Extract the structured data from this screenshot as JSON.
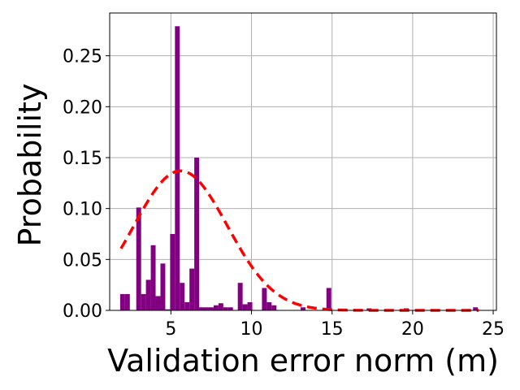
{
  "chart_data": {
    "type": "bar",
    "subtype": "histogram",
    "title": "",
    "xlabel": "Validation error norm (m)",
    "ylabel": "Probability",
    "xlim": [
      1.2,
      25.2
    ],
    "ylim": [
      0,
      0.292
    ],
    "xticks": [
      5,
      10,
      15,
      20,
      25
    ],
    "yticks": [
      0.0,
      0.05,
      0.1,
      0.15,
      0.2,
      0.25
    ],
    "ytick_labels": [
      "0.00",
      "0.05",
      "0.10",
      "0.15",
      "0.20",
      "0.25"
    ],
    "grid": true,
    "bar_color": "#800080",
    "fit_color": "#ff0000",
    "bin_width": 0.3,
    "bins": [
      {
        "x": 2.0,
        "y": 0.016
      },
      {
        "x": 2.3,
        "y": 0.016
      },
      {
        "x": 3.0,
        "y": 0.101
      },
      {
        "x": 3.3,
        "y": 0.016
      },
      {
        "x": 3.6,
        "y": 0.03
      },
      {
        "x": 3.9,
        "y": 0.064
      },
      {
        "x": 4.2,
        "y": 0.014
      },
      {
        "x": 4.5,
        "y": 0.046
      },
      {
        "x": 4.8,
        "y": 0.001
      },
      {
        "x": 5.1,
        "y": 0.075
      },
      {
        "x": 5.4,
        "y": 0.279
      },
      {
        "x": 5.7,
        "y": 0.027
      },
      {
        "x": 6.0,
        "y": 0.008
      },
      {
        "x": 6.3,
        "y": 0.041
      },
      {
        "x": 6.6,
        "y": 0.15
      },
      {
        "x": 6.9,
        "y": 0.003
      },
      {
        "x": 7.2,
        "y": 0.003
      },
      {
        "x": 7.5,
        "y": 0.003
      },
      {
        "x": 7.8,
        "y": 0.005
      },
      {
        "x": 8.1,
        "y": 0.007
      },
      {
        "x": 8.4,
        "y": 0.003
      },
      {
        "x": 8.7,
        "y": 0.003
      },
      {
        "x": 9.3,
        "y": 0.027
      },
      {
        "x": 9.6,
        "y": 0.006
      },
      {
        "x": 9.9,
        "y": 0.008
      },
      {
        "x": 10.8,
        "y": 0.022
      },
      {
        "x": 11.1,
        "y": 0.008
      },
      {
        "x": 11.4,
        "y": 0.005
      },
      {
        "x": 13.2,
        "y": 0.003
      },
      {
        "x": 14.8,
        "y": 0.022
      },
      {
        "x": 17.3,
        "y": 0.002
      },
      {
        "x": 19.6,
        "y": 0.002
      },
      {
        "x": 23.9,
        "y": 0.003
      }
    ],
    "fit": {
      "style": "dashed",
      "mean": 5.6,
      "std": 2.9,
      "peak": 0.137,
      "x_range": [
        1.9,
        24.1
      ]
    }
  }
}
